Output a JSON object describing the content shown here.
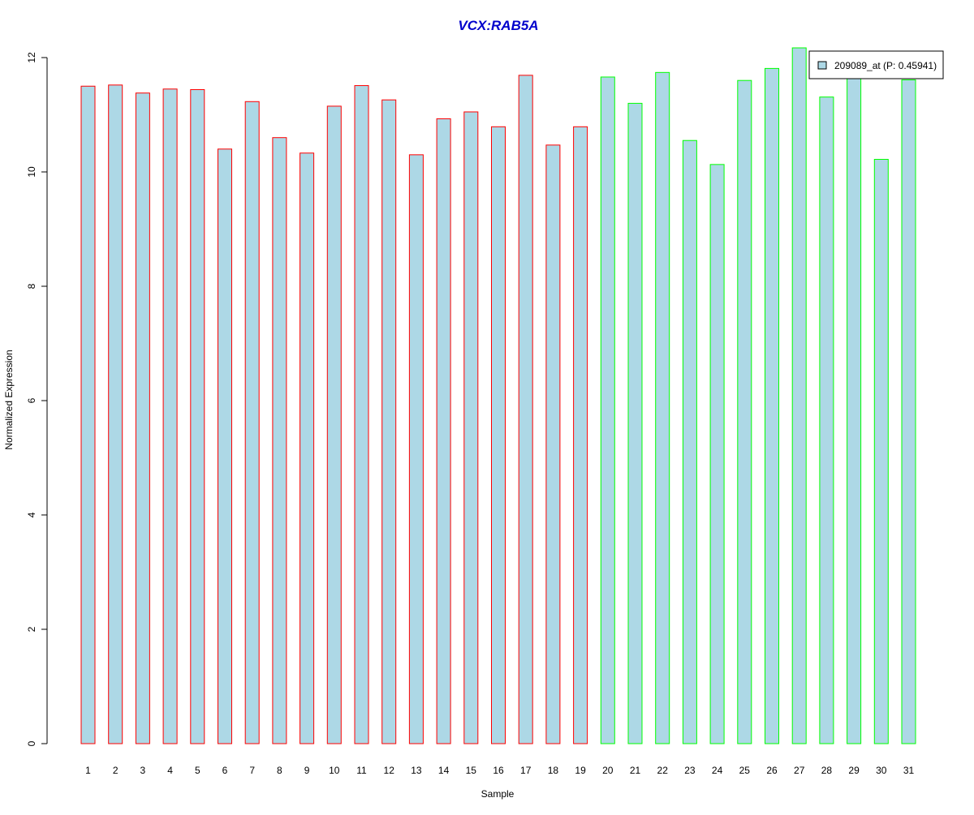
{
  "chart_data": {
    "type": "bar",
    "title": "VCX:RAB5A",
    "xlabel": "Sample",
    "ylabel": "Normalized Expression",
    "ylim": [
      0,
      12
    ],
    "yticks": [
      "0",
      "2",
      "4",
      "6",
      "8",
      "10",
      "12"
    ],
    "categories": [
      "1",
      "2",
      "3",
      "4",
      "5",
      "6",
      "7",
      "8",
      "9",
      "10",
      "11",
      "12",
      "13",
      "14",
      "15",
      "16",
      "17",
      "18",
      "19",
      "20",
      "21",
      "22",
      "23",
      "24",
      "25",
      "26",
      "27",
      "28",
      "29",
      "30",
      "31"
    ],
    "series": [
      {
        "name": "209089_at (P: 0.45941)",
        "values": [
          11.5,
          11.52,
          11.38,
          11.45,
          11.44,
          10.4,
          11.23,
          10.6,
          10.33,
          11.15,
          11.51,
          11.26,
          10.3,
          10.93,
          11.05,
          10.79,
          11.69,
          10.47,
          10.79,
          11.66,
          11.2,
          11.74,
          10.55,
          10.13,
          11.6,
          11.81,
          12.17,
          11.31,
          11.72,
          10.22,
          11.61
        ]
      }
    ],
    "bar_fill": "#add8e6",
    "group_outline_colors": [
      "#ff0000",
      "#00ff00"
    ],
    "outline_groups": [
      "#ff0000",
      "#ff0000",
      "#ff0000",
      "#ff0000",
      "#ff0000",
      "#ff0000",
      "#ff0000",
      "#ff0000",
      "#ff0000",
      "#ff0000",
      "#ff0000",
      "#ff0000",
      "#ff0000",
      "#ff0000",
      "#ff0000",
      "#ff0000",
      "#ff0000",
      "#ff0000",
      "#ff0000",
      "#00ff00",
      "#00ff00",
      "#00ff00",
      "#00ff00",
      "#00ff00",
      "#00ff00",
      "#00ff00",
      "#00ff00",
      "#00ff00",
      "#00ff00",
      "#00ff00",
      "#00ff00"
    ],
    "title_color": "#0000cc",
    "legend": {
      "label": "209089_at (P: 0.45941)",
      "position": "top-right",
      "swatch_color": "#add8e6"
    },
    "grid": false
  }
}
